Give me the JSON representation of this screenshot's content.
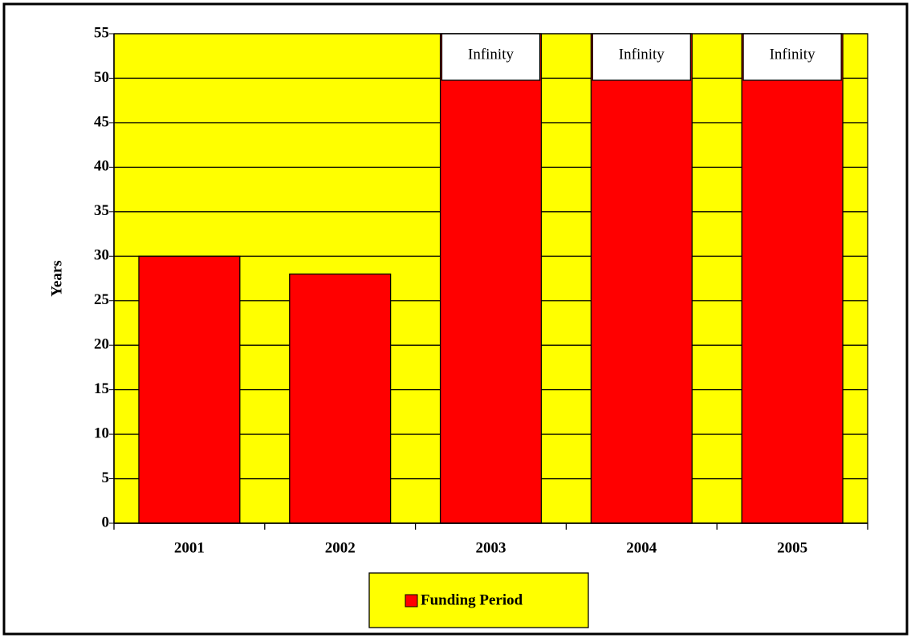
{
  "chart_data": {
    "type": "bar",
    "y_label": "Years",
    "categories": [
      "2001",
      "2002",
      "2003",
      "2004",
      "2005"
    ],
    "series": [
      {
        "name": "Funding Period",
        "color": "#ff0000",
        "values": [
          30,
          28,
          55,
          55,
          55
        ],
        "value_labels": [
          null,
          null,
          "Infinity",
          "Infinity",
          "Infinity"
        ]
      }
    ],
    "ylim": [
      0,
      55
    ],
    "yticks": [
      0,
      5,
      10,
      15,
      20,
      25,
      30,
      35,
      40,
      45,
      50,
      55
    ],
    "grid": true,
    "plot_background": "#ffff00",
    "legend": "bottom"
  }
}
